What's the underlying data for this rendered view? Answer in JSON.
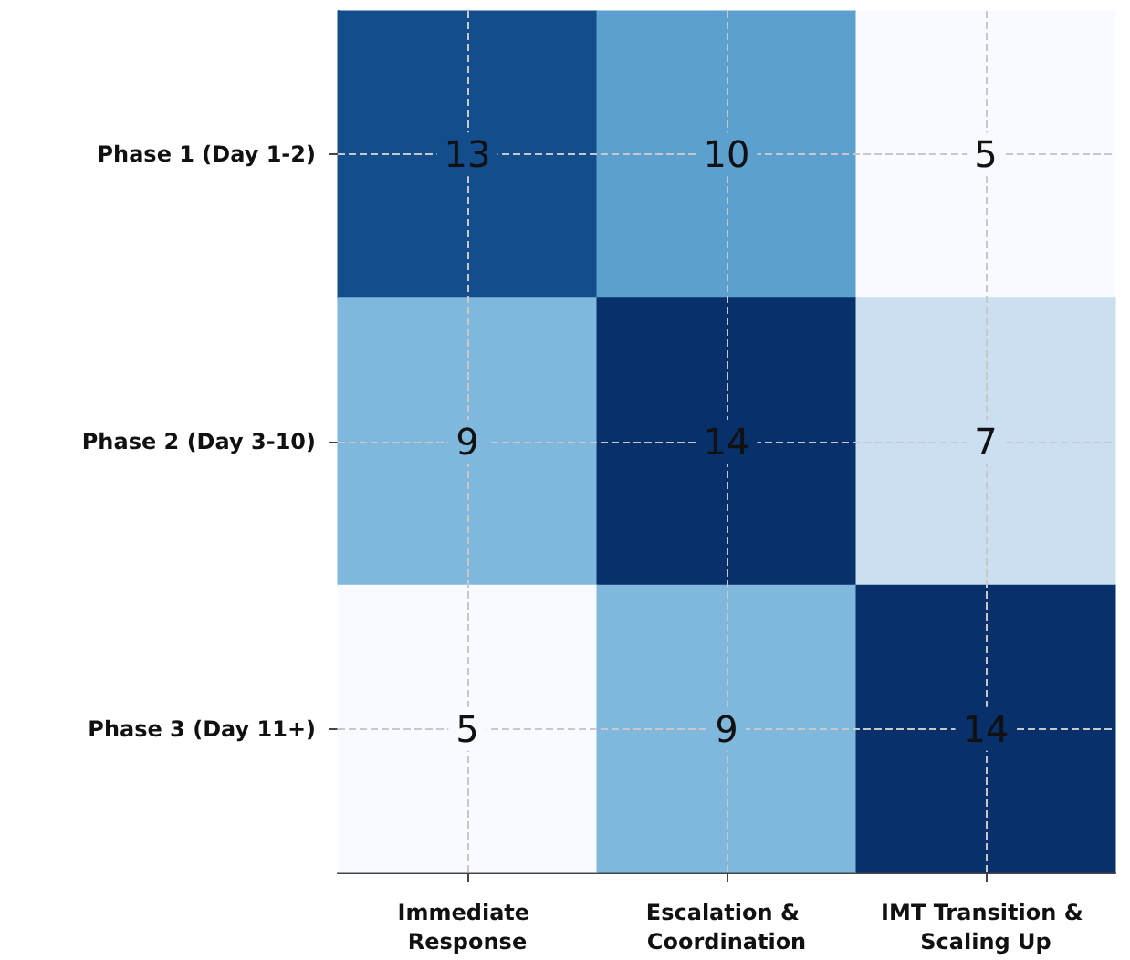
{
  "chart_data": {
    "type": "heatmap",
    "categories": [
      "Immediate Response",
      "Escalation & Coordination",
      "IMT Transition & Scaling Up"
    ],
    "y_categories": [
      "Phase 1 (Day 1-2)",
      "Phase 2 (Day 3-10)",
      "Phase 3 (Day 11+)"
    ],
    "cells": [
      [
        13,
        10,
        5
      ],
      [
        9,
        14,
        7
      ],
      [
        5,
        9,
        14
      ]
    ],
    "data_labels": true,
    "grid": true
  }
}
